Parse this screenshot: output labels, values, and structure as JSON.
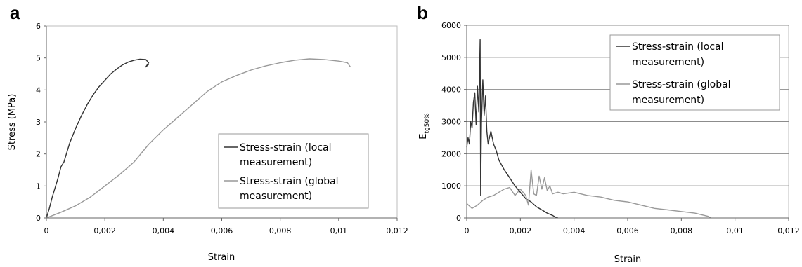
{
  "chart_data": [
    {
      "panel_label": "a",
      "type": "line",
      "xlabel": "Strain",
      "ylabel": "Stress (MPa)",
      "xlim": [
        0,
        0.012
      ],
      "ylim": [
        0,
        6
      ],
      "x_ticks": [
        "0",
        "0,002",
        "0,004",
        "0,006",
        "0,008",
        "0,01",
        "0,012"
      ],
      "y_ticks": [
        "0",
        "1",
        "2",
        "3",
        "4",
        "5",
        "6"
      ],
      "grid": false,
      "legend_position": "bottom-right",
      "legend_box": true,
      "series": [
        {
          "name": "Stress-strain (local measurement)",
          "color": "#333333",
          "x": [
            0,
            0.0001,
            0.0002,
            0.0003,
            0.0004,
            0.0005,
            0.0006,
            0.0007,
            0.0008,
            0.001,
            0.0012,
            0.0014,
            0.0016,
            0.0018,
            0.002,
            0.0022,
            0.0024,
            0.0026,
            0.0028,
            0.003,
            0.0032,
            0.0034,
            0.0035,
            0.0034,
            0.0035
          ],
          "y": [
            0,
            0.3,
            0.65,
            0.95,
            1.25,
            1.6,
            1.75,
            2.05,
            2.35,
            2.8,
            3.2,
            3.55,
            3.85,
            4.1,
            4.3,
            4.5,
            4.65,
            4.78,
            4.87,
            4.93,
            4.96,
            4.95,
            4.85,
            4.72,
            4.8
          ]
        },
        {
          "name": "Stress-strain (global measurement)",
          "color": "#999999",
          "x": [
            0,
            0.0005,
            0.001,
            0.0015,
            0.002,
            0.0025,
            0.003,
            0.0035,
            0.004,
            0.0045,
            0.005,
            0.0055,
            0.006,
            0.0065,
            0.007,
            0.0075,
            0.008,
            0.0085,
            0.009,
            0.0095,
            0.01,
            0.0103,
            0.0104
          ],
          "y": [
            0,
            0.18,
            0.38,
            0.65,
            1.0,
            1.35,
            1.75,
            2.3,
            2.75,
            3.15,
            3.55,
            3.95,
            4.25,
            4.45,
            4.62,
            4.75,
            4.85,
            4.93,
            4.97,
            4.95,
            4.9,
            4.85,
            4.72
          ]
        }
      ]
    },
    {
      "panel_label": "b",
      "type": "line",
      "xlabel": "Strain",
      "ylabel": "E",
      "ylabel_subscript": "tg50%",
      "xlim": [
        0,
        0.012
      ],
      "ylim": [
        0,
        6000
      ],
      "x_ticks": [
        "0",
        "0,002",
        "0,004",
        "0,006",
        "0,008",
        "0,01",
        "0,012"
      ],
      "y_ticks": [
        "0",
        "1000",
        "2000",
        "3000",
        "4000",
        "5000",
        "6000"
      ],
      "grid": true,
      "legend_position": "top-right",
      "legend_box": true,
      "series": [
        {
          "name": "Stress-strain (local measurement)",
          "color": "#333333",
          "x": [
            0,
            5e-05,
            0.0001,
            0.00015,
            0.0002,
            0.00025,
            0.0003,
            0.00035,
            0.0004,
            0.00045,
            0.0005,
            0.00052,
            0.00055,
            0.0006,
            0.00065,
            0.0007,
            0.00075,
            0.0008,
            0.00085,
            0.0009,
            0.001,
            0.0011,
            0.0012,
            0.0014,
            0.0016,
            0.0018,
            0.002,
            0.0022,
            0.0024,
            0.0026,
            0.0028,
            0.003,
            0.0032,
            0.0033,
            0.0034
          ],
          "y": [
            2200,
            2500,
            2300,
            3000,
            2800,
            3600,
            3900,
            2900,
            4100,
            3300,
            5550,
            700,
            3000,
            4300,
            3200,
            3800,
            2700,
            2300,
            2500,
            2700,
            2300,
            2100,
            1800,
            1500,
            1250,
            1000,
            800,
            600,
            500,
            350,
            250,
            150,
            80,
            30,
            0
          ]
        },
        {
          "name": "Stress-strain (global measurement)",
          "color": "#999999",
          "x": [
            0,
            0.0002,
            0.0004,
            0.0006,
            0.0008,
            0.001,
            0.0012,
            0.0014,
            0.0016,
            0.0018,
            0.002,
            0.0022,
            0.0023,
            0.0024,
            0.0025,
            0.0026,
            0.0027,
            0.0028,
            0.0029,
            0.003,
            0.0031,
            0.0032,
            0.0034,
            0.0036,
            0.004,
            0.0045,
            0.005,
            0.0055,
            0.006,
            0.0065,
            0.007,
            0.0075,
            0.008,
            0.0085,
            0.009,
            0.0091
          ],
          "y": [
            450,
            300,
            400,
            550,
            650,
            700,
            800,
            900,
            950,
            700,
            900,
            700,
            400,
            1500,
            750,
            700,
            1300,
            900,
            1250,
            850,
            1000,
            750,
            800,
            750,
            800,
            700,
            650,
            550,
            500,
            400,
            300,
            250,
            200,
            150,
            50,
            0
          ]
        }
      ]
    }
  ]
}
